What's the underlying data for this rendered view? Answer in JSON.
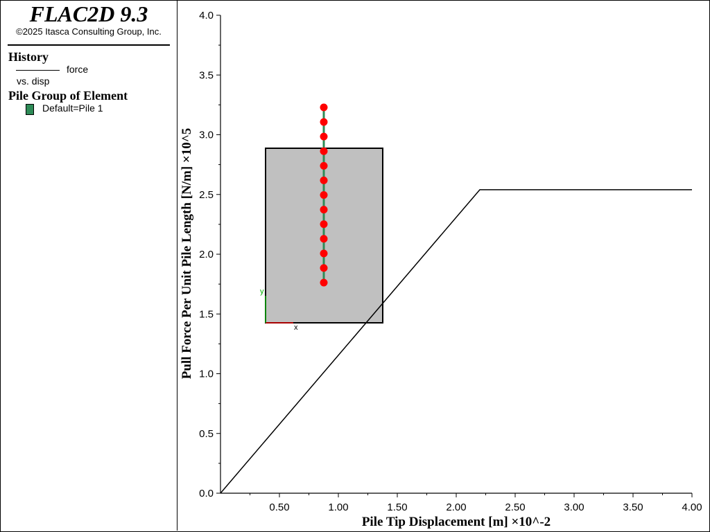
{
  "app": {
    "title": "FLAC2D 9.3",
    "copyright": "©2025 Itasca Consulting Group, Inc."
  },
  "legend": {
    "history_title": "History",
    "history_force": "force",
    "history_disp": "vs. disp",
    "pile_group_title": "Pile Group of Element",
    "pile_item": "Default=Pile 1",
    "pile_color": "#2e8b57"
  },
  "chart_data": {
    "type": "line",
    "xlabel": "Pile Tip Displacement [m] ×10^-2",
    "ylabel": "Pull Force Per Unit Pile Length [N/m] ×10^5",
    "xlim": [
      0,
      4.0
    ],
    "ylim": [
      0,
      4.0
    ],
    "xticks": [
      "0.50",
      "1.00",
      "1.50",
      "2.00",
      "2.50",
      "3.00",
      "3.50",
      "4.00"
    ],
    "yticks": [
      "0.0",
      "0.5",
      "1.0",
      "1.5",
      "2.0",
      "2.5",
      "3.0",
      "3.5",
      "4.0"
    ],
    "series": [
      {
        "x": [
          0,
          2.2,
          4.0
        ],
        "y": [
          0,
          2.54,
          2.54
        ],
        "color": "#000000"
      }
    ],
    "grid": false
  },
  "inset": {
    "box_color": "#c0c0c0",
    "pile_color": "#2e8b57",
    "node_color": "#ff0000",
    "node_count": 13,
    "axis_x_label": "x",
    "axis_y_label": "y"
  }
}
